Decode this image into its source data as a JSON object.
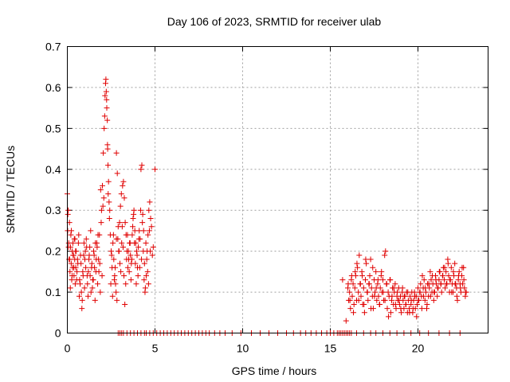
{
  "chart_data": {
    "type": "scatter",
    "title": "Day 106 of 2023, SRMTID for receiver ulab",
    "xlabel": "GPS time / hours",
    "ylabel": "SRMTID / TECUs",
    "xlim": [
      0,
      24
    ],
    "ylim": [
      0,
      0.7
    ],
    "xticks": [
      0,
      5,
      10,
      15,
      20
    ],
    "yticks": [
      0,
      0.1,
      0.2,
      0.3,
      0.4,
      0.5,
      0.6,
      0.7
    ],
    "xtick_labels": [
      "0",
      "5",
      "10",
      "15",
      "20"
    ],
    "ytick_labels": [
      "0",
      "0.1",
      "0.2",
      "0.3",
      "0.4",
      "0.5",
      "0.6",
      "0.7"
    ],
    "grid": true,
    "marker": "+",
    "color": "#e00000",
    "series": [
      {
        "name": "SRMTID",
        "x": [
          0.0,
          0.02,
          0.05,
          0.08,
          0.1,
          0.12,
          0.15,
          0.18,
          0.2,
          0.22,
          0.25,
          0.28,
          0.3,
          0.32,
          0.35,
          0.38,
          0.4,
          0.42,
          0.45,
          0.48,
          0.5,
          0.55,
          0.6,
          0.65,
          0.7,
          0.75,
          0.8,
          0.85,
          0.9,
          0.95,
          1.0,
          1.05,
          1.1,
          1.15,
          1.2,
          1.25,
          1.3,
          1.35,
          1.4,
          1.45,
          1.5,
          1.55,
          1.6,
          1.65,
          1.7,
          1.75,
          1.8,
          1.85,
          1.9,
          1.95,
          2.0,
          2.05,
          2.1,
          2.15,
          2.18,
          2.2,
          2.22,
          2.25,
          2.28,
          2.3,
          2.32,
          2.35,
          2.38,
          2.4,
          2.45,
          2.5,
          2.55,
          2.6,
          2.65,
          2.7,
          2.75,
          2.8,
          2.85,
          2.9,
          2.95,
          3.0,
          3.05,
          3.1,
          3.15,
          3.2,
          3.25,
          3.3,
          3.35,
          3.4,
          3.45,
          3.5,
          3.55,
          3.6,
          3.65,
          3.7,
          3.75,
          3.8,
          3.85,
          3.9,
          3.95,
          4.0,
          4.05,
          4.1,
          4.15,
          4.2,
          4.25,
          4.3,
          4.35,
          4.4,
          4.45,
          4.5,
          4.55,
          4.6,
          4.65,
          4.7,
          4.75,
          4.8,
          4.85,
          4.9,
          5.0,
          0.03,
          0.07,
          0.13,
          0.17,
          0.23,
          0.27,
          0.33,
          0.37,
          0.43,
          0.47,
          0.53,
          0.58,
          0.63,
          0.68,
          0.73,
          0.78,
          0.83,
          0.88,
          0.93,
          0.98,
          1.03,
          1.08,
          1.13,
          1.18,
          1.23,
          1.28,
          1.33,
          1.38,
          1.43,
          1.48,
          1.53,
          1.58,
          1.63,
          1.68,
          1.73,
          1.78,
          1.83,
          1.88,
          1.93,
          1.98,
          2.03,
          2.08,
          2.13,
          2.24,
          2.29,
          2.33,
          2.42,
          2.48,
          2.53,
          2.58,
          2.63,
          2.68,
          2.73,
          2.78,
          2.83,
          2.88,
          2.93,
          2.98,
          3.03,
          3.08,
          3.13,
          3.18,
          3.23,
          3.28,
          3.33,
          3.38,
          3.43,
          3.48,
          3.53,
          3.58,
          3.63,
          3.68,
          3.73,
          3.78,
          3.83,
          3.88,
          3.93,
          3.98,
          4.03,
          4.08,
          4.13,
          4.18,
          4.23,
          4.28,
          4.33,
          4.38,
          4.43,
          4.48,
          4.53,
          4.58,
          4.63,
          4.68,
          4.73,
          2.8,
          2.9,
          3.0,
          3.1,
          3.2,
          3.4,
          3.6,
          3.8,
          4.0,
          4.2,
          4.4,
          4.5,
          4.7,
          4.9,
          5.1,
          5.3,
          5.5,
          5.7,
          5.9,
          6.1,
          6.3,
          6.5,
          6.7,
          6.9,
          7.1,
          7.3,
          7.5,
          7.7,
          7.9,
          8.1,
          8.4,
          8.7,
          9.0,
          9.4,
          9.9,
          10.5,
          11.0,
          11.5,
          12.0,
          12.5,
          12.9,
          13.3,
          13.6,
          13.9,
          14.2,
          14.5,
          14.8,
          15.0,
          15.2,
          15.4,
          15.5,
          15.6,
          15.7,
          15.8,
          15.9,
          16.0,
          16.1,
          16.2,
          16.5,
          16.9,
          17.3,
          17.6,
          18.0,
          18.4,
          18.8,
          19.2,
          19.6,
          20.1,
          20.6,
          21.2,
          21.8,
          22.4,
          15.5,
          15.7,
          15.9,
          16.0,
          16.05,
          16.1,
          16.15,
          16.2,
          16.25,
          16.3,
          16.35,
          16.4,
          16.45,
          16.5,
          16.55,
          16.6,
          16.65,
          16.7,
          16.75,
          16.8,
          16.85,
          16.9,
          16.95,
          17.0,
          17.05,
          17.1,
          17.15,
          17.2,
          17.25,
          17.3,
          17.35,
          17.4,
          17.45,
          17.5,
          17.55,
          17.6,
          17.65,
          17.7,
          17.75,
          17.8,
          17.85,
          17.9,
          17.95,
          18.0,
          18.05,
          18.1,
          18.15,
          18.2,
          18.25,
          18.3,
          18.35,
          18.4,
          18.45,
          18.5,
          18.55,
          18.6,
          18.65,
          18.7,
          18.75,
          18.8,
          18.85,
          18.9,
          18.95,
          19.0,
          19.05,
          19.1,
          19.15,
          19.2,
          19.25,
          19.3,
          19.35,
          19.4,
          19.45,
          19.5,
          19.55,
          19.6,
          19.65,
          19.7,
          19.75,
          19.8,
          19.85,
          19.9,
          19.95,
          20.0,
          20.05,
          20.1,
          20.15,
          20.2,
          20.25,
          20.3,
          20.35,
          20.4,
          20.45,
          20.5,
          20.55,
          20.6,
          20.65,
          20.7,
          20.75,
          20.8,
          20.85,
          20.9,
          20.95,
          21.0,
          21.05,
          21.1,
          21.15,
          21.2,
          21.25,
          21.3,
          21.35,
          21.4,
          21.45,
          21.5,
          21.55,
          21.6,
          21.65,
          21.7,
          21.75,
          21.8,
          21.85,
          21.9,
          21.95,
          22.0,
          22.05,
          22.1,
          22.15,
          22.2,
          22.25,
          22.3,
          22.35,
          22.4,
          22.45,
          22.5,
          22.55,
          22.6,
          22.65,
          22.7,
          22.75,
          16.02,
          16.12,
          16.22,
          16.32,
          16.42,
          16.52,
          16.62,
          16.72,
          16.82,
          16.92,
          17.02,
          17.12,
          17.22,
          17.32,
          17.42,
          17.52,
          17.62,
          17.72,
          17.82,
          17.92,
          18.02,
          18.12,
          18.22,
          18.32,
          18.42,
          18.52,
          18.62,
          18.72,
          18.82,
          18.92,
          19.02,
          19.12,
          19.22,
          19.32,
          19.42,
          19.52,
          19.62,
          19.72,
          19.82,
          19.92,
          20.02,
          20.12,
          20.22,
          20.32,
          20.42,
          20.52,
          20.62,
          20.72,
          20.82,
          20.92,
          21.02,
          21.12,
          21.22,
          21.32,
          21.42,
          21.52,
          21.62,
          21.72,
          21.82,
          21.92,
          22.02,
          22.12,
          22.22,
          22.32,
          22.42,
          22.52,
          22.62,
          22.72
        ],
        "y": [
          0.34,
          0.25,
          0.3,
          0.22,
          0.18,
          0.27,
          0.15,
          0.21,
          0.24,
          0.17,
          0.13,
          0.2,
          0.16,
          0.22,
          0.19,
          0.14,
          0.23,
          0.18,
          0.12,
          0.16,
          0.2,
          0.15,
          0.17,
          0.24,
          0.13,
          0.19,
          0.1,
          0.08,
          0.14,
          0.22,
          0.18,
          0.16,
          0.21,
          0.12,
          0.15,
          0.19,
          0.14,
          0.1,
          0.17,
          0.13,
          0.2,
          0.16,
          0.22,
          0.18,
          0.21,
          0.24,
          0.15,
          0.17,
          0.35,
          0.3,
          0.36,
          0.44,
          0.5,
          0.58,
          0.61,
          0.62,
          0.59,
          0.55,
          0.52,
          0.45,
          0.41,
          0.37,
          0.32,
          0.28,
          0.24,
          0.2,
          0.16,
          0.22,
          0.18,
          0.14,
          0.12,
          0.44,
          0.39,
          0.26,
          0.2,
          0.17,
          0.15,
          0.22,
          0.36,
          0.37,
          0.33,
          0.27,
          0.24,
          0.2,
          0.16,
          0.18,
          0.22,
          0.19,
          0.17,
          0.24,
          0.28,
          0.3,
          0.25,
          0.22,
          0.2,
          0.16,
          0.21,
          0.25,
          0.23,
          0.4,
          0.41,
          0.29,
          0.25,
          0.17,
          0.11,
          0.14,
          0.2,
          0.24,
          0.3,
          0.32,
          0.28,
          0.26,
          0.19,
          0.21,
          0.4,
          0.29,
          0.21,
          0.18,
          0.11,
          0.25,
          0.14,
          0.19,
          0.16,
          0.23,
          0.2,
          0.13,
          0.18,
          0.22,
          0.09,
          0.12,
          0.17,
          0.06,
          0.15,
          0.19,
          0.11,
          0.2,
          0.23,
          0.14,
          0.09,
          0.18,
          0.21,
          0.25,
          0.16,
          0.11,
          0.13,
          0.19,
          0.08,
          0.15,
          0.22,
          0.12,
          0.18,
          0.24,
          0.1,
          0.27,
          0.14,
          0.31,
          0.33,
          0.53,
          0.57,
          0.46,
          0.34,
          0.3,
          0.12,
          0.19,
          0.09,
          0.24,
          0.13,
          0.16,
          0.1,
          0.08,
          0.23,
          0.2,
          0.27,
          0.31,
          0.34,
          0.26,
          0.21,
          0.14,
          0.07,
          0.12,
          0.18,
          0.24,
          0.2,
          0.15,
          0.22,
          0.13,
          0.18,
          0.26,
          0.29,
          0.22,
          0.17,
          0.12,
          0.19,
          0.14,
          0.23,
          0.16,
          0.3,
          0.18,
          0.27,
          0.2,
          0.13,
          0.1,
          0.22,
          0.18,
          0.15,
          0.12,
          0.25,
          0.2,
          0.23,
          0.0,
          0.0,
          0.0,
          0.0,
          0.0,
          0.0,
          0.0,
          0.0,
          0.0,
          0.0,
          0.0,
          0.0,
          0.0,
          0.0,
          0.0,
          0.0,
          0.0,
          0.0,
          0.0,
          0.0,
          0.0,
          0.0,
          0.0,
          0.0,
          0.0,
          0.0,
          0.0,
          0.0,
          0.0,
          0.0,
          0.0,
          0.0,
          0.0,
          0.0,
          0.0,
          0.0,
          0.0,
          0.0,
          0.0,
          0.0,
          0.0,
          0.0,
          0.0,
          0.0,
          0.0,
          0.0,
          0.0,
          0.0,
          0.0,
          0.0,
          0.0,
          0.0,
          0.0,
          0.0,
          0.0,
          0.0,
          0.0,
          0.0,
          0.0,
          0.0,
          0.0,
          0.0,
          0.0,
          0.0,
          0.0,
          0.0,
          0.0,
          0.0,
          0.0,
          0.0,
          0.0,
          0.0,
          0.13,
          0.03,
          0.11,
          0.08,
          0.1,
          0.06,
          0.13,
          0.09,
          0.12,
          0.07,
          0.11,
          0.14,
          0.08,
          0.16,
          0.1,
          0.19,
          0.12,
          0.09,
          0.15,
          0.07,
          0.11,
          0.05,
          0.13,
          0.17,
          0.1,
          0.08,
          0.12,
          0.14,
          0.18,
          0.11,
          0.09,
          0.06,
          0.13,
          0.1,
          0.15,
          0.08,
          0.12,
          0.09,
          0.07,
          0.11,
          0.14,
          0.1,
          0.13,
          0.08,
          0.19,
          0.2,
          0.12,
          0.06,
          0.1,
          0.09,
          0.13,
          0.05,
          0.08,
          0.11,
          0.07,
          0.1,
          0.12,
          0.06,
          0.09,
          0.08,
          0.11,
          0.07,
          0.09,
          0.05,
          0.1,
          0.08,
          0.06,
          0.09,
          0.07,
          0.1,
          0.05,
          0.08,
          0.06,
          0.09,
          0.07,
          0.1,
          0.05,
          0.08,
          0.1,
          0.06,
          0.09,
          0.07,
          0.11,
          0.08,
          0.1,
          0.12,
          0.09,
          0.14,
          0.11,
          0.13,
          0.08,
          0.1,
          0.06,
          0.12,
          0.09,
          0.11,
          0.15,
          0.13,
          0.1,
          0.12,
          0.08,
          0.1,
          0.14,
          0.12,
          0.09,
          0.11,
          0.13,
          0.15,
          0.12,
          0.1,
          0.14,
          0.16,
          0.13,
          0.11,
          0.15,
          0.12,
          0.18,
          0.14,
          0.1,
          0.13,
          0.16,
          0.12,
          0.1,
          0.14,
          0.17,
          0.12,
          0.11,
          0.08,
          0.13,
          0.15,
          0.12,
          0.1,
          0.14,
          0.12,
          0.16,
          0.11,
          0.09,
          0.1,
          0.12,
          0.08,
          0.14,
          0.05,
          0.15,
          0.17,
          0.08,
          0.12,
          0.14,
          0.07,
          0.18,
          0.1,
          0.12,
          0.06,
          0.16,
          0.09,
          0.11,
          0.13,
          0.07,
          0.15,
          0.1,
          0.08,
          0.12,
          0.04,
          0.13,
          0.09,
          0.11,
          0.07,
          0.1,
          0.08,
          0.06,
          0.11,
          0.09,
          0.07,
          0.1,
          0.05,
          0.08,
          0.06,
          0.09,
          0.04,
          0.08,
          0.1,
          0.06,
          0.09,
          0.11,
          0.07,
          0.12,
          0.09,
          0.14,
          0.1,
          0.13,
          0.11,
          0.15,
          0.12,
          0.14,
          0.16,
          0.12,
          0.17,
          0.13,
          0.1,
          0.15,
          0.12,
          0.09,
          0.14,
          0.11,
          0.16,
          0.13,
          0.1
        ]
      }
    ]
  }
}
